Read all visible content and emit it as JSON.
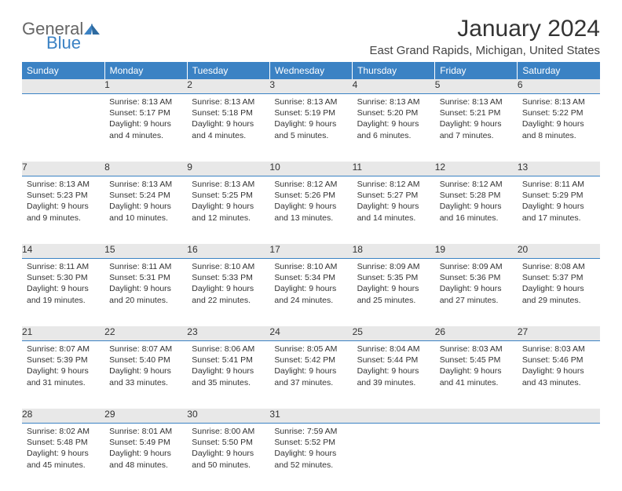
{
  "brand": {
    "part1": "General",
    "part2": "Blue"
  },
  "header": {
    "title": "January 2024",
    "location": "East Grand Rapids, Michigan, United States"
  },
  "day_names": [
    "Sunday",
    "Monday",
    "Tuesday",
    "Wednesday",
    "Thursday",
    "Friday",
    "Saturday"
  ],
  "colors": {
    "header_bg": "#3b82c4",
    "daynum_bg": "#e8e8e8",
    "daynum_border": "#3b82c4"
  },
  "weeks": [
    [
      {
        "n": "",
        "sr": "",
        "ss": "",
        "dl": ""
      },
      {
        "n": "1",
        "sr": "Sunrise: 8:13 AM",
        "ss": "Sunset: 5:17 PM",
        "dl": "Daylight: 9 hours and 4 minutes."
      },
      {
        "n": "2",
        "sr": "Sunrise: 8:13 AM",
        "ss": "Sunset: 5:18 PM",
        "dl": "Daylight: 9 hours and 4 minutes."
      },
      {
        "n": "3",
        "sr": "Sunrise: 8:13 AM",
        "ss": "Sunset: 5:19 PM",
        "dl": "Daylight: 9 hours and 5 minutes."
      },
      {
        "n": "4",
        "sr": "Sunrise: 8:13 AM",
        "ss": "Sunset: 5:20 PM",
        "dl": "Daylight: 9 hours and 6 minutes."
      },
      {
        "n": "5",
        "sr": "Sunrise: 8:13 AM",
        "ss": "Sunset: 5:21 PM",
        "dl": "Daylight: 9 hours and 7 minutes."
      },
      {
        "n": "6",
        "sr": "Sunrise: 8:13 AM",
        "ss": "Sunset: 5:22 PM",
        "dl": "Daylight: 9 hours and 8 minutes."
      }
    ],
    [
      {
        "n": "7",
        "sr": "Sunrise: 8:13 AM",
        "ss": "Sunset: 5:23 PM",
        "dl": "Daylight: 9 hours and 9 minutes."
      },
      {
        "n": "8",
        "sr": "Sunrise: 8:13 AM",
        "ss": "Sunset: 5:24 PM",
        "dl": "Daylight: 9 hours and 10 minutes."
      },
      {
        "n": "9",
        "sr": "Sunrise: 8:13 AM",
        "ss": "Sunset: 5:25 PM",
        "dl": "Daylight: 9 hours and 12 minutes."
      },
      {
        "n": "10",
        "sr": "Sunrise: 8:12 AM",
        "ss": "Sunset: 5:26 PM",
        "dl": "Daylight: 9 hours and 13 minutes."
      },
      {
        "n": "11",
        "sr": "Sunrise: 8:12 AM",
        "ss": "Sunset: 5:27 PM",
        "dl": "Daylight: 9 hours and 14 minutes."
      },
      {
        "n": "12",
        "sr": "Sunrise: 8:12 AM",
        "ss": "Sunset: 5:28 PM",
        "dl": "Daylight: 9 hours and 16 minutes."
      },
      {
        "n": "13",
        "sr": "Sunrise: 8:11 AM",
        "ss": "Sunset: 5:29 PM",
        "dl": "Daylight: 9 hours and 17 minutes."
      }
    ],
    [
      {
        "n": "14",
        "sr": "Sunrise: 8:11 AM",
        "ss": "Sunset: 5:30 PM",
        "dl": "Daylight: 9 hours and 19 minutes."
      },
      {
        "n": "15",
        "sr": "Sunrise: 8:11 AM",
        "ss": "Sunset: 5:31 PM",
        "dl": "Daylight: 9 hours and 20 minutes."
      },
      {
        "n": "16",
        "sr": "Sunrise: 8:10 AM",
        "ss": "Sunset: 5:33 PM",
        "dl": "Daylight: 9 hours and 22 minutes."
      },
      {
        "n": "17",
        "sr": "Sunrise: 8:10 AM",
        "ss": "Sunset: 5:34 PM",
        "dl": "Daylight: 9 hours and 24 minutes."
      },
      {
        "n": "18",
        "sr": "Sunrise: 8:09 AM",
        "ss": "Sunset: 5:35 PM",
        "dl": "Daylight: 9 hours and 25 minutes."
      },
      {
        "n": "19",
        "sr": "Sunrise: 8:09 AM",
        "ss": "Sunset: 5:36 PM",
        "dl": "Daylight: 9 hours and 27 minutes."
      },
      {
        "n": "20",
        "sr": "Sunrise: 8:08 AM",
        "ss": "Sunset: 5:37 PM",
        "dl": "Daylight: 9 hours and 29 minutes."
      }
    ],
    [
      {
        "n": "21",
        "sr": "Sunrise: 8:07 AM",
        "ss": "Sunset: 5:39 PM",
        "dl": "Daylight: 9 hours and 31 minutes."
      },
      {
        "n": "22",
        "sr": "Sunrise: 8:07 AM",
        "ss": "Sunset: 5:40 PM",
        "dl": "Daylight: 9 hours and 33 minutes."
      },
      {
        "n": "23",
        "sr": "Sunrise: 8:06 AM",
        "ss": "Sunset: 5:41 PM",
        "dl": "Daylight: 9 hours and 35 minutes."
      },
      {
        "n": "24",
        "sr": "Sunrise: 8:05 AM",
        "ss": "Sunset: 5:42 PM",
        "dl": "Daylight: 9 hours and 37 minutes."
      },
      {
        "n": "25",
        "sr": "Sunrise: 8:04 AM",
        "ss": "Sunset: 5:44 PM",
        "dl": "Daylight: 9 hours and 39 minutes."
      },
      {
        "n": "26",
        "sr": "Sunrise: 8:03 AM",
        "ss": "Sunset: 5:45 PM",
        "dl": "Daylight: 9 hours and 41 minutes."
      },
      {
        "n": "27",
        "sr": "Sunrise: 8:03 AM",
        "ss": "Sunset: 5:46 PM",
        "dl": "Daylight: 9 hours and 43 minutes."
      }
    ],
    [
      {
        "n": "28",
        "sr": "Sunrise: 8:02 AM",
        "ss": "Sunset: 5:48 PM",
        "dl": "Daylight: 9 hours and 45 minutes."
      },
      {
        "n": "29",
        "sr": "Sunrise: 8:01 AM",
        "ss": "Sunset: 5:49 PM",
        "dl": "Daylight: 9 hours and 48 minutes."
      },
      {
        "n": "30",
        "sr": "Sunrise: 8:00 AM",
        "ss": "Sunset: 5:50 PM",
        "dl": "Daylight: 9 hours and 50 minutes."
      },
      {
        "n": "31",
        "sr": "Sunrise: 7:59 AM",
        "ss": "Sunset: 5:52 PM",
        "dl": "Daylight: 9 hours and 52 minutes."
      },
      {
        "n": "",
        "sr": "",
        "ss": "",
        "dl": ""
      },
      {
        "n": "",
        "sr": "",
        "ss": "",
        "dl": ""
      },
      {
        "n": "",
        "sr": "",
        "ss": "",
        "dl": ""
      }
    ]
  ]
}
